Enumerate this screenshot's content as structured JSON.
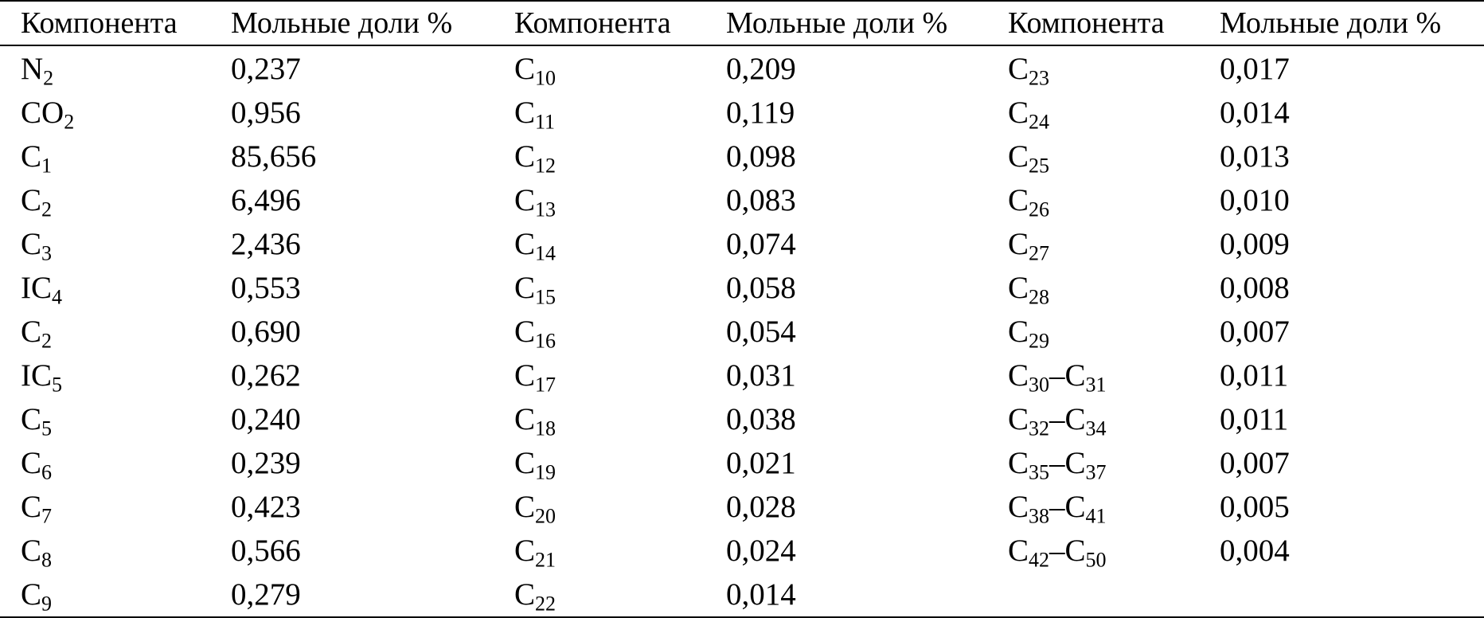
{
  "table": {
    "headers": [
      "Компонента",
      "Мольные доли %",
      "Компонента",
      "Мольные доли %",
      "Компонента",
      "Мольные доли %"
    ],
    "columns": [
      {
        "rows": [
          {
            "base": "N",
            "sub": "2",
            "value": "0,237"
          },
          {
            "base": "CO",
            "sub": "2",
            "value": "0,956"
          },
          {
            "base": "C",
            "sub": "1",
            "value": "85,656"
          },
          {
            "base": "C",
            "sub": "2",
            "value": "6,496"
          },
          {
            "base": "C",
            "sub": "3",
            "value": "2,436"
          },
          {
            "base": "IC",
            "sub": "4",
            "value": "0,553"
          },
          {
            "base": "C",
            "sub": "2",
            "value": "0,690"
          },
          {
            "base": "IC",
            "sub": "5",
            "value": "0,262"
          },
          {
            "base": "C",
            "sub": "5",
            "value": "0,240"
          },
          {
            "base": "C",
            "sub": "6",
            "value": "0,239"
          },
          {
            "base": "C",
            "sub": "7",
            "value": "0,423"
          },
          {
            "base": "C",
            "sub": "8",
            "value": "0,566"
          },
          {
            "base": "C",
            "sub": "9",
            "value": "0,279"
          }
        ]
      },
      {
        "rows": [
          {
            "base": "C",
            "sub": "10",
            "value": "0,209"
          },
          {
            "base": "C",
            "sub": "11",
            "value": "0,119"
          },
          {
            "base": "C",
            "sub": "12",
            "value": "0,098"
          },
          {
            "base": "C",
            "sub": "13",
            "value": "0,083"
          },
          {
            "base": "C",
            "sub": "14",
            "value": "0,074"
          },
          {
            "base": "C",
            "sub": "15",
            "value": "0,058"
          },
          {
            "base": "C",
            "sub": "16",
            "value": "0,054"
          },
          {
            "base": "C",
            "sub": "17",
            "value": "0,031"
          },
          {
            "base": "C",
            "sub": "18",
            "value": "0,038"
          },
          {
            "base": "C",
            "sub": "19",
            "value": "0,021"
          },
          {
            "base": "C",
            "sub": "20",
            "value": "0,028"
          },
          {
            "base": "C",
            "sub": "21",
            "value": "0,024"
          },
          {
            "base": "C",
            "sub": "22",
            "value": "0,014"
          }
        ]
      },
      {
        "rows": [
          {
            "base": "C",
            "sub": "23",
            "value": "0,017"
          },
          {
            "base": "C",
            "sub": "24",
            "value": "0,014"
          },
          {
            "base": "C",
            "sub": "25",
            "value": "0,013"
          },
          {
            "base": "C",
            "sub": "26",
            "value": "0,010"
          },
          {
            "base": "C",
            "sub": "27",
            "value": "0,009"
          },
          {
            "base": "C",
            "sub": "28",
            "value": "0,008"
          },
          {
            "base": "C",
            "sub": "29",
            "value": "0,007"
          },
          {
            "base": "C",
            "sub": "30",
            "dash": "–",
            "base2": "C",
            "sub2": "31",
            "value": "0,011"
          },
          {
            "base": "C",
            "sub": "32",
            "dash": "–",
            "base2": "C",
            "sub2": "34",
            "value": "0,011"
          },
          {
            "base": "C",
            "sub": "35",
            "dash": "–",
            "base2": "C",
            "sub2": "37",
            "value": "0,007"
          },
          {
            "base": "C",
            "sub": "38",
            "dash": "–",
            "base2": "C",
            "sub2": "41",
            "value": "0,005"
          },
          {
            "base": "C",
            "sub": "42",
            "dash": "–",
            "base2": "C",
            "sub2": "50",
            "value": "0,004"
          }
        ]
      }
    ]
  }
}
